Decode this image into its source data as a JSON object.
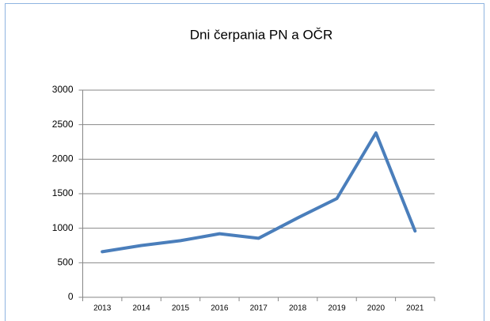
{
  "chart_data": {
    "type": "line",
    "title": "Dni čerpania  PN a OČR",
    "categories": [
      "2013",
      "2014",
      "2015",
      "2016",
      "2017",
      "2018",
      "2019",
      "2020",
      "2021"
    ],
    "values": [
      660,
      750,
      820,
      920,
      855,
      1150,
      1430,
      2380,
      960
    ],
    "color": "#4a7ebb",
    "ylim": [
      0,
      3000
    ],
    "yticks": [
      0,
      500,
      1000,
      1500,
      2000,
      2500,
      3000
    ],
    "grid": true
  }
}
